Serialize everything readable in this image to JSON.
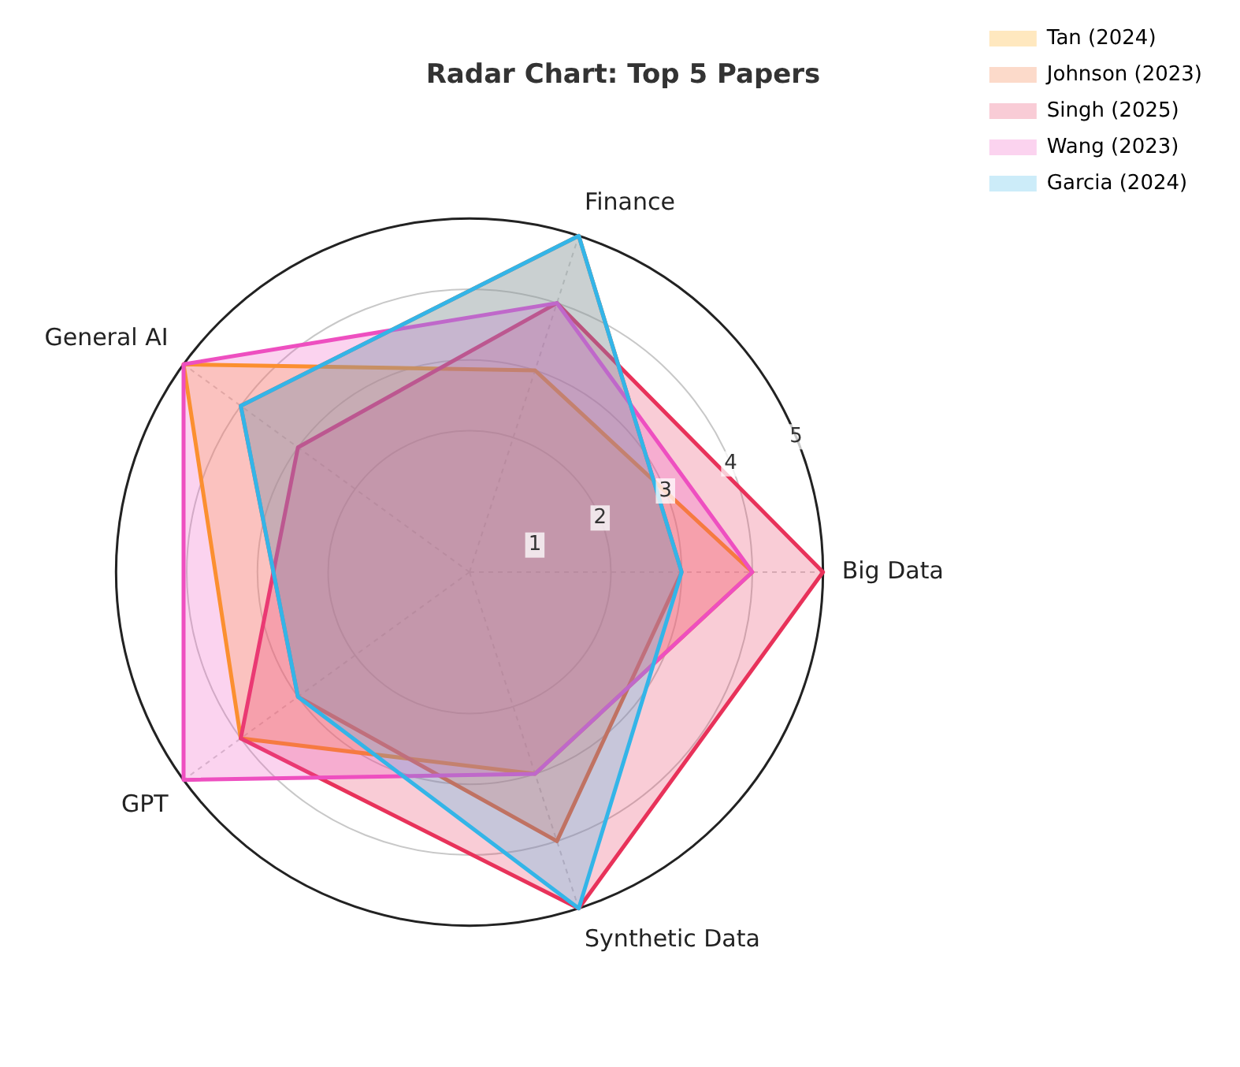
{
  "chart_data": {
    "type": "radar",
    "title": "Radar Chart: Top 5 Papers",
    "categories": [
      "Finance",
      "Big Data",
      "Synthetic Data",
      "GPT",
      "General AI"
    ],
    "ylim": [
      0,
      5
    ],
    "yticks": [
      1,
      2,
      3,
      4,
      5
    ],
    "grid": true,
    "legend": "top right",
    "series": [
      {
        "name": "Tan (2024)",
        "color": "#ffa500",
        "values": [
          3,
          4,
          3,
          4,
          5
        ]
      },
      {
        "name": "Johnson (2023)",
        "color": "#f26b2a",
        "values": [
          5,
          3,
          4,
          3,
          4
        ]
      },
      {
        "name": "Singh (2025)",
        "color": "#e8325a",
        "values": [
          4,
          5,
          5,
          4,
          3
        ]
      },
      {
        "name": "Wang (2023)",
        "color": "#ee4fc0",
        "values": [
          4,
          4,
          3,
          5,
          5
        ]
      },
      {
        "name": "Garcia (2024)",
        "color": "#33b5e8",
        "values": [
          5,
          3,
          5,
          3,
          4
        ]
      }
    ]
  }
}
